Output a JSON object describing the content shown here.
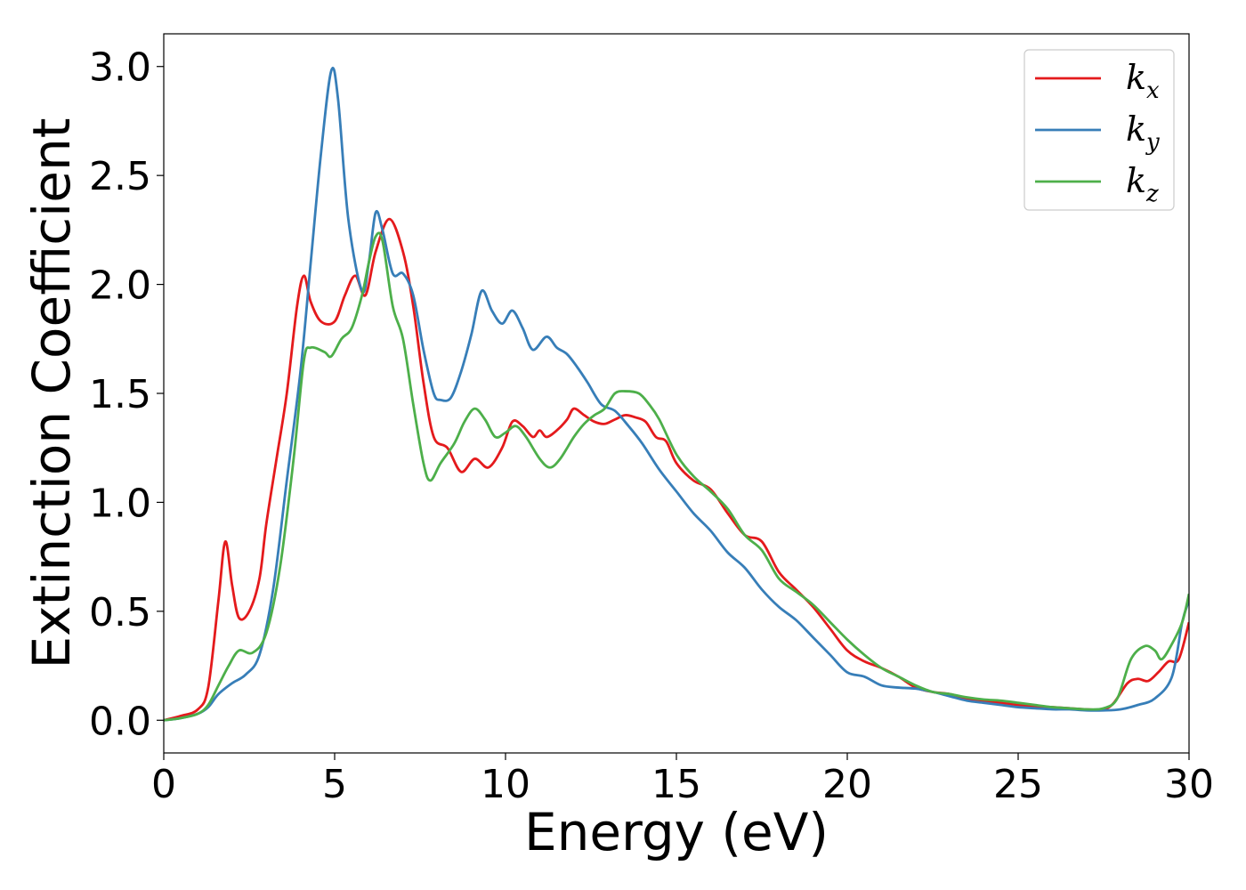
{
  "chart_data": {
    "type": "line",
    "title": "",
    "xlabel": "Energy (eV)",
    "ylabel": "Extinction Coefficient",
    "xlim": [
      0,
      30
    ],
    "ylim": [
      -0.15,
      3.15
    ],
    "xticks": [
      0,
      5,
      10,
      15,
      20,
      25,
      30
    ],
    "xtick_labels": [
      "0",
      "5",
      "10",
      "15",
      "20",
      "25",
      "30"
    ],
    "yticks": [
      0.0,
      0.5,
      1.0,
      1.5,
      2.0,
      2.5,
      3.0
    ],
    "ytick_labels": [
      "0.0",
      "0.5",
      "1.0",
      "1.5",
      "2.0",
      "2.5",
      "3.0"
    ],
    "grid": false,
    "legend_position": "top-right",
    "series": [
      {
        "name": "kx",
        "label_base": "k",
        "label_sub": "x",
        "color": "#e41a1c",
        "points": [
          [
            0,
            0
          ],
          [
            0.5,
            0.02
          ],
          [
            1,
            0.05
          ],
          [
            1.3,
            0.15
          ],
          [
            1.6,
            0.55
          ],
          [
            1.8,
            0.82
          ],
          [
            2.0,
            0.62
          ],
          [
            2.2,
            0.47
          ],
          [
            2.5,
            0.5
          ],
          [
            2.8,
            0.65
          ],
          [
            3.0,
            0.9
          ],
          [
            3.3,
            1.2
          ],
          [
            3.6,
            1.5
          ],
          [
            3.9,
            1.9
          ],
          [
            4.1,
            2.04
          ],
          [
            4.3,
            1.92
          ],
          [
            4.6,
            1.83
          ],
          [
            5.0,
            1.83
          ],
          [
            5.3,
            1.95
          ],
          [
            5.6,
            2.04
          ],
          [
            5.9,
            1.95
          ],
          [
            6.2,
            2.15
          ],
          [
            6.6,
            2.3
          ],
          [
            7.0,
            2.15
          ],
          [
            7.3,
            1.9
          ],
          [
            7.6,
            1.55
          ],
          [
            7.9,
            1.3
          ],
          [
            8.3,
            1.25
          ],
          [
            8.7,
            1.14
          ],
          [
            9.1,
            1.2
          ],
          [
            9.5,
            1.16
          ],
          [
            9.9,
            1.25
          ],
          [
            10.2,
            1.37
          ],
          [
            10.5,
            1.35
          ],
          [
            10.8,
            1.3
          ],
          [
            11.0,
            1.33
          ],
          [
            11.2,
            1.3
          ],
          [
            11.5,
            1.33
          ],
          [
            11.8,
            1.38
          ],
          [
            12.0,
            1.43
          ],
          [
            12.3,
            1.4
          ],
          [
            12.6,
            1.37
          ],
          [
            12.9,
            1.36
          ],
          [
            13.2,
            1.38
          ],
          [
            13.5,
            1.4
          ],
          [
            13.8,
            1.39
          ],
          [
            14.1,
            1.37
          ],
          [
            14.4,
            1.3
          ],
          [
            14.7,
            1.28
          ],
          [
            15.0,
            1.18
          ],
          [
            15.5,
            1.1
          ],
          [
            16.0,
            1.06
          ],
          [
            16.5,
            0.95
          ],
          [
            17.0,
            0.85
          ],
          [
            17.5,
            0.82
          ],
          [
            18.0,
            0.68
          ],
          [
            18.5,
            0.6
          ],
          [
            19.0,
            0.52
          ],
          [
            19.5,
            0.42
          ],
          [
            20.0,
            0.32
          ],
          [
            20.5,
            0.27
          ],
          [
            21.0,
            0.24
          ],
          [
            21.5,
            0.2
          ],
          [
            22.0,
            0.15
          ],
          [
            22.5,
            0.13
          ],
          [
            23.0,
            0.12
          ],
          [
            23.5,
            0.1
          ],
          [
            24.0,
            0.09
          ],
          [
            24.5,
            0.08
          ],
          [
            25.0,
            0.07
          ],
          [
            25.5,
            0.065
          ],
          [
            26.0,
            0.06
          ],
          [
            26.5,
            0.055
          ],
          [
            27.0,
            0.05
          ],
          [
            27.5,
            0.05
          ],
          [
            27.8,
            0.08
          ],
          [
            28.2,
            0.17
          ],
          [
            28.5,
            0.19
          ],
          [
            28.8,
            0.18
          ],
          [
            29.1,
            0.22
          ],
          [
            29.4,
            0.27
          ],
          [
            29.7,
            0.28
          ],
          [
            30,
            0.45
          ]
        ]
      },
      {
        "name": "ky",
        "label_base": "k",
        "label_sub": "y",
        "color": "#377eb8",
        "points": [
          [
            0,
            0
          ],
          [
            0.5,
            0.01
          ],
          [
            1,
            0.03
          ],
          [
            1.3,
            0.06
          ],
          [
            1.6,
            0.12
          ],
          [
            2.0,
            0.17
          ],
          [
            2.4,
            0.21
          ],
          [
            2.8,
            0.3
          ],
          [
            3.2,
            0.6
          ],
          [
            3.6,
            1.1
          ],
          [
            4.0,
            1.6
          ],
          [
            4.3,
            2.1
          ],
          [
            4.6,
            2.6
          ],
          [
            4.9,
            2.98
          ],
          [
            5.1,
            2.85
          ],
          [
            5.4,
            2.3
          ],
          [
            5.8,
            1.97
          ],
          [
            6.0,
            2.1
          ],
          [
            6.2,
            2.33
          ],
          [
            6.4,
            2.25
          ],
          [
            6.7,
            2.05
          ],
          [
            7.0,
            2.05
          ],
          [
            7.3,
            1.95
          ],
          [
            7.6,
            1.7
          ],
          [
            7.9,
            1.5
          ],
          [
            8.1,
            1.47
          ],
          [
            8.4,
            1.48
          ],
          [
            8.7,
            1.6
          ],
          [
            9.0,
            1.77
          ],
          [
            9.3,
            1.97
          ],
          [
            9.6,
            1.88
          ],
          [
            9.9,
            1.82
          ],
          [
            10.2,
            1.88
          ],
          [
            10.5,
            1.8
          ],
          [
            10.8,
            1.7
          ],
          [
            11.2,
            1.76
          ],
          [
            11.5,
            1.71
          ],
          [
            11.8,
            1.68
          ],
          [
            12.1,
            1.62
          ],
          [
            12.4,
            1.55
          ],
          [
            12.8,
            1.45
          ],
          [
            13.2,
            1.42
          ],
          [
            13.6,
            1.35
          ],
          [
            14.0,
            1.27
          ],
          [
            14.5,
            1.15
          ],
          [
            15.0,
            1.05
          ],
          [
            15.5,
            0.95
          ],
          [
            16.0,
            0.87
          ],
          [
            16.5,
            0.77
          ],
          [
            17.0,
            0.7
          ],
          [
            17.5,
            0.6
          ],
          [
            18.0,
            0.52
          ],
          [
            18.5,
            0.46
          ],
          [
            19.0,
            0.38
          ],
          [
            19.5,
            0.3
          ],
          [
            20.0,
            0.22
          ],
          [
            20.5,
            0.2
          ],
          [
            21.0,
            0.16
          ],
          [
            21.5,
            0.15
          ],
          [
            22.0,
            0.145
          ],
          [
            22.5,
            0.13
          ],
          [
            23.0,
            0.11
          ],
          [
            23.5,
            0.09
          ],
          [
            24.0,
            0.08
          ],
          [
            24.5,
            0.07
          ],
          [
            25.0,
            0.06
          ],
          [
            25.5,
            0.055
          ],
          [
            26.0,
            0.05
          ],
          [
            26.5,
            0.05
          ],
          [
            27.0,
            0.045
          ],
          [
            27.5,
            0.045
          ],
          [
            28.0,
            0.05
          ],
          [
            28.5,
            0.07
          ],
          [
            29.0,
            0.1
          ],
          [
            29.5,
            0.2
          ],
          [
            29.8,
            0.45
          ],
          [
            30,
            0.55
          ]
        ]
      },
      {
        "name": "kz",
        "label_base": "k",
        "label_sub": "z",
        "color": "#4daf4a",
        "points": [
          [
            0,
            0
          ],
          [
            0.5,
            0.01
          ],
          [
            1,
            0.03
          ],
          [
            1.3,
            0.07
          ],
          [
            1.6,
            0.16
          ],
          [
            1.9,
            0.25
          ],
          [
            2.2,
            0.32
          ],
          [
            2.6,
            0.31
          ],
          [
            3.0,
            0.4
          ],
          [
            3.4,
            0.7
          ],
          [
            3.8,
            1.2
          ],
          [
            4.1,
            1.65
          ],
          [
            4.3,
            1.71
          ],
          [
            4.7,
            1.69
          ],
          [
            4.9,
            1.67
          ],
          [
            5.2,
            1.75
          ],
          [
            5.5,
            1.8
          ],
          [
            5.8,
            1.95
          ],
          [
            6.0,
            2.1
          ],
          [
            6.2,
            2.22
          ],
          [
            6.4,
            2.2
          ],
          [
            6.7,
            1.9
          ],
          [
            7.0,
            1.75
          ],
          [
            7.3,
            1.45
          ],
          [
            7.6,
            1.18
          ],
          [
            7.8,
            1.1
          ],
          [
            8.1,
            1.18
          ],
          [
            8.5,
            1.27
          ],
          [
            8.8,
            1.37
          ],
          [
            9.1,
            1.43
          ],
          [
            9.4,
            1.38
          ],
          [
            9.7,
            1.3
          ],
          [
            10.0,
            1.32
          ],
          [
            10.3,
            1.35
          ],
          [
            10.6,
            1.3
          ],
          [
            11.0,
            1.2
          ],
          [
            11.3,
            1.16
          ],
          [
            11.6,
            1.2
          ],
          [
            12.0,
            1.3
          ],
          [
            12.3,
            1.36
          ],
          [
            12.6,
            1.4
          ],
          [
            12.9,
            1.43
          ],
          [
            13.2,
            1.5
          ],
          [
            13.5,
            1.51
          ],
          [
            13.9,
            1.5
          ],
          [
            14.2,
            1.45
          ],
          [
            14.5,
            1.38
          ],
          [
            15.0,
            1.22
          ],
          [
            15.5,
            1.12
          ],
          [
            16.0,
            1.05
          ],
          [
            16.5,
            0.97
          ],
          [
            17.0,
            0.85
          ],
          [
            17.5,
            0.78
          ],
          [
            18.0,
            0.65
          ],
          [
            18.5,
            0.59
          ],
          [
            19.0,
            0.53
          ],
          [
            19.5,
            0.45
          ],
          [
            20.0,
            0.37
          ],
          [
            20.5,
            0.3
          ],
          [
            21.0,
            0.24
          ],
          [
            21.5,
            0.2
          ],
          [
            22.0,
            0.16
          ],
          [
            22.5,
            0.13
          ],
          [
            23.0,
            0.12
          ],
          [
            23.5,
            0.105
          ],
          [
            24.0,
            0.095
          ],
          [
            24.5,
            0.09
          ],
          [
            25.0,
            0.08
          ],
          [
            25.5,
            0.07
          ],
          [
            26.0,
            0.06
          ],
          [
            26.5,
            0.055
          ],
          [
            27.0,
            0.05
          ],
          [
            27.5,
            0.055
          ],
          [
            27.9,
            0.1
          ],
          [
            28.3,
            0.28
          ],
          [
            28.7,
            0.34
          ],
          [
            29.0,
            0.32
          ],
          [
            29.2,
            0.28
          ],
          [
            29.5,
            0.35
          ],
          [
            29.8,
            0.45
          ],
          [
            30,
            0.58
          ]
        ]
      }
    ]
  }
}
